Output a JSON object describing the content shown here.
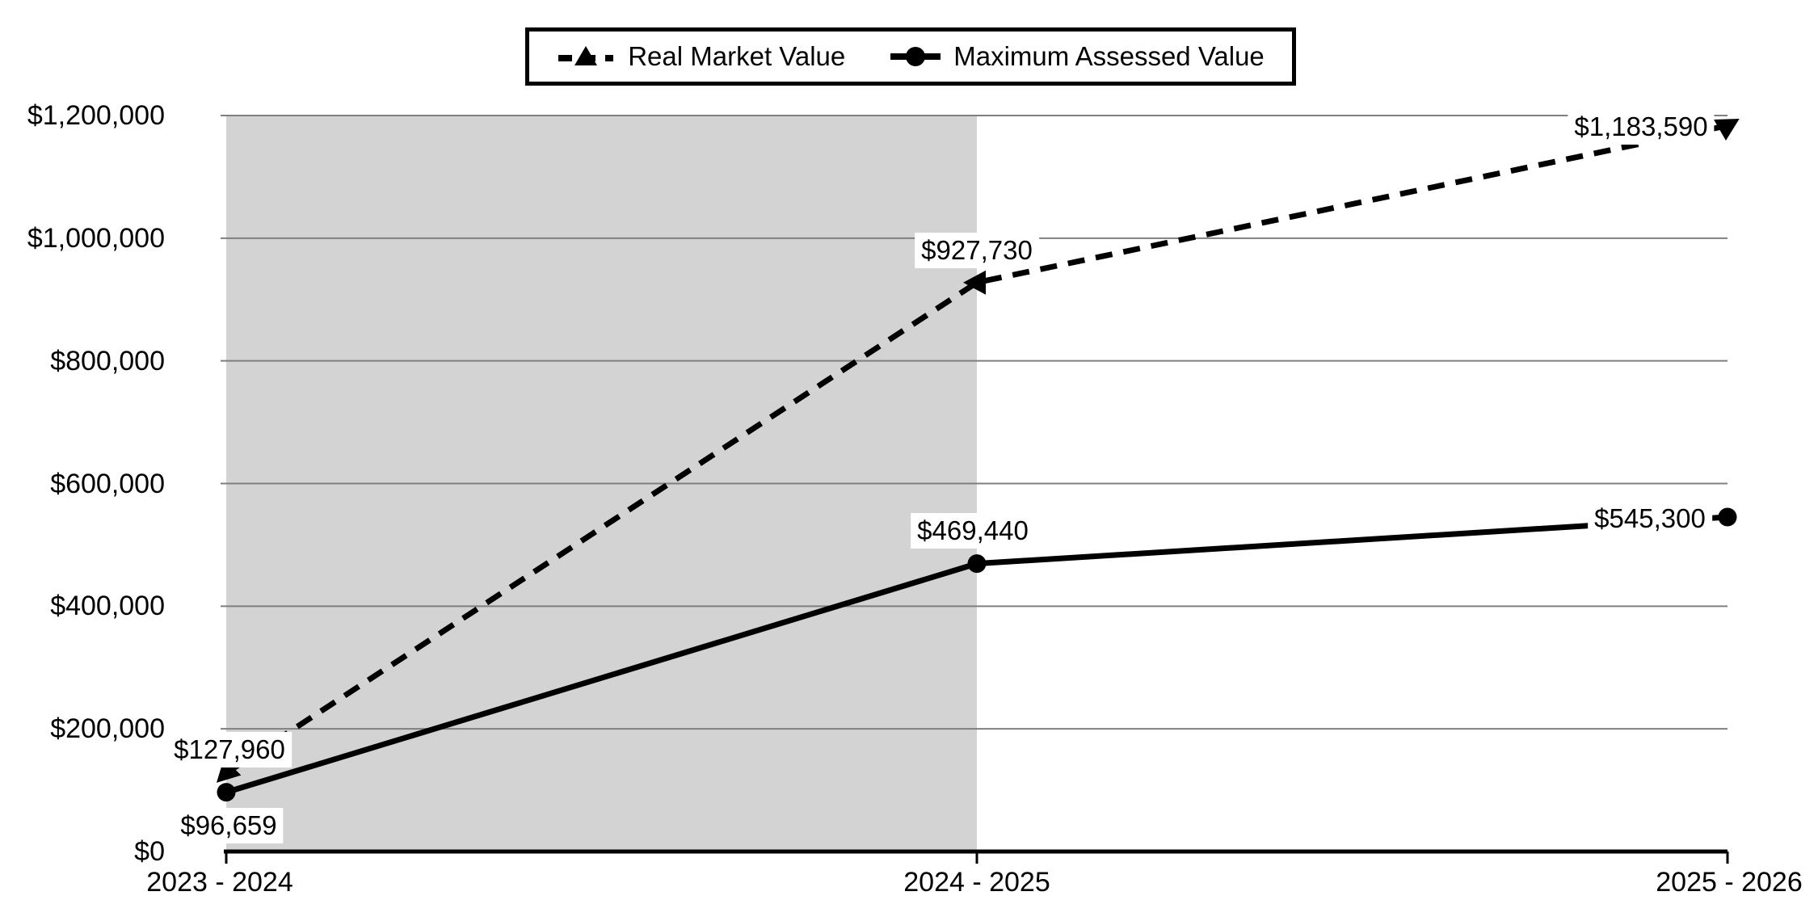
{
  "chart_data": {
    "type": "line",
    "title": "",
    "xlabel": "",
    "ylabel": "",
    "categories": [
      "2023 - 2024",
      "2024 - 2025",
      "2025 - 2026"
    ],
    "ylim": [
      0,
      1200000
    ],
    "grid": true,
    "legend_position": "top-center",
    "yticks": {
      "values": [
        0,
        200000,
        400000,
        600000,
        800000,
        1000000,
        1200000
      ],
      "labels": [
        "$0",
        "$200,000",
        "$400,000",
        "$600,000",
        "$800,000",
        "$1,000,000",
        "$1,200,000"
      ]
    },
    "series": [
      {
        "name": "Real Market Value",
        "line": "dashed",
        "marker": "triangle",
        "color": "#000000",
        "values": [
          127960,
          927730,
          1183590
        ],
        "labels": [
          "$127,960",
          "$927,730",
          "$1,183,590"
        ],
        "label_positions": [
          "above",
          "above",
          "left"
        ]
      },
      {
        "name": "Maximum Assessed Value",
        "line": "solid",
        "marker": "circle",
        "color": "#000000",
        "values": [
          96659,
          469440,
          545300
        ],
        "labels": [
          "$96,659",
          "$469,440",
          "$545,300"
        ],
        "label_positions": [
          "below",
          "above",
          "left"
        ]
      }
    ],
    "highlight_region": {
      "from_category": "2023 - 2024",
      "to_category": "2024 - 2025",
      "color": "#d3d3d3"
    },
    "colors": {
      "series": "#000000",
      "gridline": "#7f7f7f",
      "axis": "#000000",
      "background": "#ffffff",
      "label_background": "#ffffff"
    }
  }
}
